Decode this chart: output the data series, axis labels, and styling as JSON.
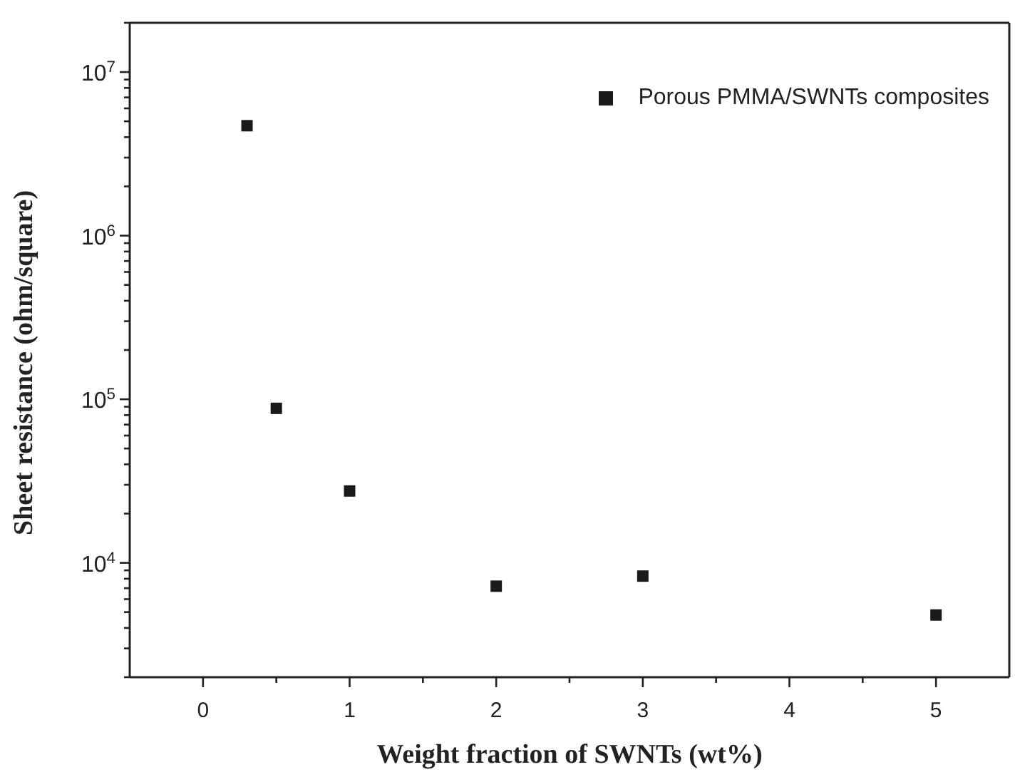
{
  "chart_data": {
    "type": "scatter",
    "xlabel": "Weight fraction of SWNTs (wt%)",
    "ylabel": "Sheet resistance (ohm/square)",
    "x": [
      0.3,
      0.5,
      1,
      2,
      3,
      5
    ],
    "series": [
      {
        "name": "Porous PMMA/SWNTs composites",
        "color": "#1a1a1a",
        "values": [
          4700000,
          88000,
          27500,
          7200,
          8300,
          4800
        ]
      }
    ],
    "log": "y",
    "xlim": [
      -0.5,
      5.5
    ],
    "xticks": [
      0,
      1,
      2,
      3,
      4,
      5,
      {
        "value": 0.5,
        "label": null
      },
      {
        "value": 1.5,
        "label": null
      },
      {
        "value": 2.5,
        "label": null
      },
      {
        "value": 3.5,
        "label": null
      },
      {
        "value": 4.5,
        "label": null
      }
    ],
    "ylim": [
      2000,
      20000000
    ],
    "yticks": [
      {
        "value": 10000,
        "label": "10$^{4}$"
      },
      {
        "value": 100000,
        "label": "10$^{5}$"
      },
      {
        "value": 1000000,
        "label": "10$^{6}$"
      },
      {
        "value": 10000000,
        "label": "10$^{7}$"
      },
      {
        "value": 2000,
        "label": null
      },
      {
        "value": 3000,
        "label": null
      },
      {
        "value": 4000,
        "label": null
      },
      {
        "value": 5000,
        "label": null
      },
      {
        "value": 6000,
        "label": null
      },
      {
        "value": 7000,
        "label": null
      },
      {
        "value": 8000,
        "label": null
      },
      {
        "value": 9000,
        "label": null
      },
      {
        "value": 20000,
        "label": null
      },
      {
        "value": 30000,
        "label": null
      },
      {
        "value": 40000,
        "label": null
      },
      {
        "value": 50000,
        "label": null
      },
      {
        "value": 60000,
        "label": null
      },
      {
        "value": 70000,
        "label": null
      },
      {
        "value": 80000,
        "label": null
      },
      {
        "value": 90000,
        "label": null
      },
      {
        "value": 200000,
        "label": null
      },
      {
        "value": 300000,
        "label": null
      },
      {
        "value": 400000,
        "label": null
      },
      {
        "value": 500000,
        "label": null
      },
      {
        "value": 600000,
        "label": null
      },
      {
        "value": 700000,
        "label": null
      },
      {
        "value": 800000,
        "label": null
      },
      {
        "value": 900000,
        "label": null
      },
      {
        "value": 2000000,
        "label": null
      },
      {
        "value": 3000000,
        "label": null
      },
      {
        "value": 4000000,
        "label": null
      },
      {
        "value": 5000000,
        "label": null
      },
      {
        "value": 6000000,
        "label": null
      },
      {
        "value": 7000000,
        "label": null
      },
      {
        "value": 8000000,
        "label": null
      },
      {
        "value": 9000000,
        "label": null
      },
      {
        "value": 20000000,
        "label": null
      }
    ],
    "marker": "square",
    "legend": "top right"
  }
}
